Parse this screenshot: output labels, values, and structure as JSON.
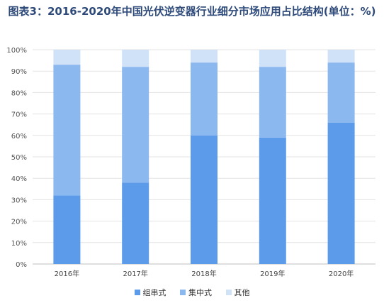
{
  "chart_data": {
    "type": "bar",
    "stacked": true,
    "title": "图表3：2016-2020年中国光伏逆变器行业细分市场应用占比结构(单位：%)",
    "categories": [
      "2016年",
      "2017年",
      "2018年",
      "2019年",
      "2020年"
    ],
    "series": [
      {
        "name": "组串式",
        "color": "#5b9bea",
        "values": [
          32,
          38,
          60,
          59,
          66
        ]
      },
      {
        "name": "集中式",
        "color": "#8cb8f0",
        "values": [
          61,
          54,
          34,
          33,
          28
        ]
      },
      {
        "name": "其他",
        "color": "#cfe2f8",
        "values": [
          7,
          8,
          6,
          8,
          6
        ]
      }
    ],
    "ylim": [
      0,
      100
    ],
    "yticks": [
      "0%",
      "10%",
      "20%",
      "30%",
      "40%",
      "50%",
      "60%",
      "70%",
      "80%",
      "90%",
      "100%"
    ],
    "grid": true,
    "legend_position": "bottom"
  }
}
